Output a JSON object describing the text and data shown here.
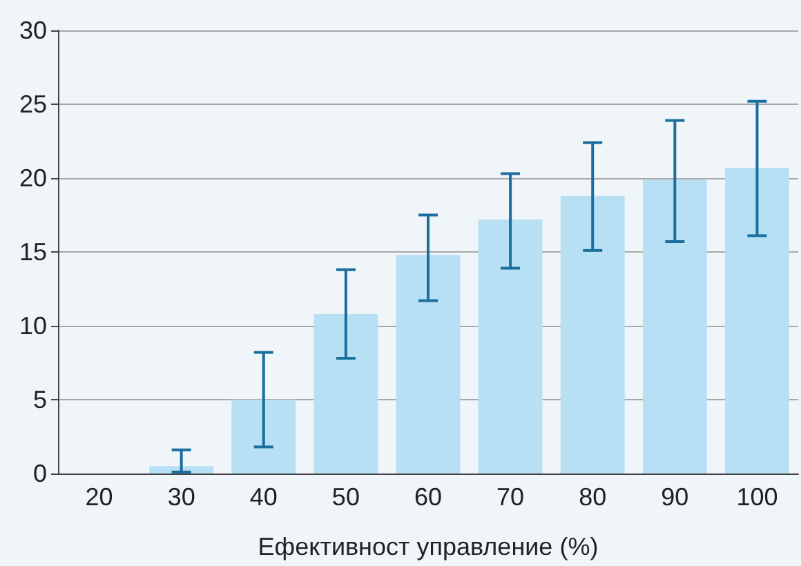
{
  "chart_data": {
    "type": "bar",
    "xlabel": "Ефективност управление (%)",
    "categories": [
      "20",
      "30",
      "40",
      "50",
      "60",
      "70",
      "80",
      "90",
      "100"
    ],
    "values": [
      0,
      0.5,
      5.0,
      10.8,
      14.8,
      17.2,
      18.8,
      19.9,
      20.7
    ],
    "errors": [
      null,
      [
        0.1,
        1.6
      ],
      [
        1.8,
        8.2
      ],
      [
        7.8,
        13.8
      ],
      [
        11.7,
        17.5
      ],
      [
        13.9,
        20.3
      ],
      [
        15.1,
        22.4
      ],
      [
        15.7,
        23.9
      ],
      [
        16.1,
        25.2
      ]
    ],
    "color": "#b8e0f4",
    "ylim": [
      0,
      30
    ],
    "yticks": [
      0,
      5,
      10,
      15,
      20,
      25,
      30
    ],
    "grid": "y"
  }
}
